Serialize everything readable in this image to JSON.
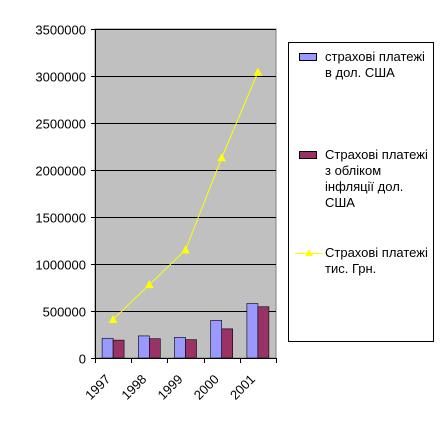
{
  "chart_data": {
    "type": "bar",
    "categories": [
      "1997",
      "1998",
      "1999",
      "2000",
      "2001"
    ],
    "series": [
      {
        "name": "страхові платежі в дол. США",
        "kind": "bar",
        "color": "#9999ff",
        "values": [
          210000,
          235000,
          220000,
          400000,
          580000
        ]
      },
      {
        "name": "Страхові платежі з обліком інфляції дол. США",
        "kind": "bar",
        "color": "#993366",
        "values": [
          190000,
          205000,
          195000,
          310000,
          545000
        ]
      },
      {
        "name": "Страхові платежі тис. Грн.",
        "kind": "line",
        "color": "#ffff00",
        "values": [
          410000,
          780000,
          1150000,
          2130000,
          3040000
        ]
      }
    ],
    "yticks": [
      "0",
      "500000",
      "1000000",
      "1500000",
      "2000000",
      "2500000",
      "3000000",
      "3500000"
    ],
    "ylim": [
      0,
      3500000
    ],
    "grid": true,
    "plot_background": "#c0c0c0",
    "legend_position": "right"
  }
}
